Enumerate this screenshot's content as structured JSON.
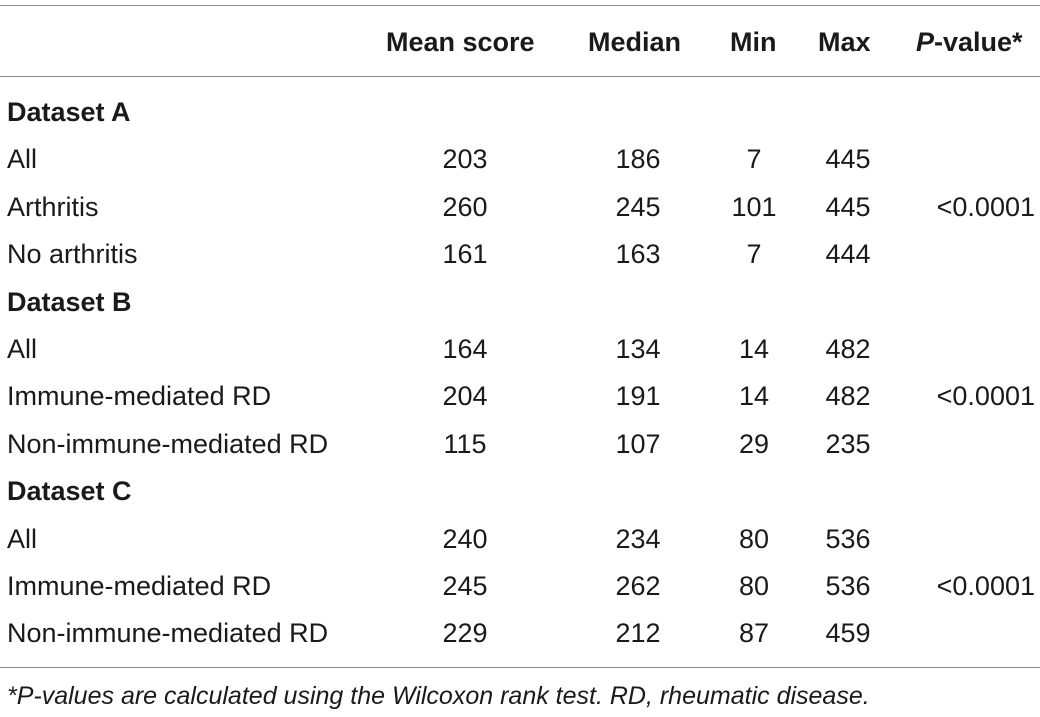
{
  "table": {
    "headers": {
      "mean": "Mean score",
      "median": "Median",
      "min": "Min",
      "max": "Max",
      "p_italic": "P",
      "p_rest": "-value*"
    },
    "rows": [
      {
        "label": "Dataset A",
        "section": true
      },
      {
        "label": "All",
        "mean": "203",
        "median": "186",
        "min": "7",
        "max": "445",
        "p": ""
      },
      {
        "label": "Arthritis",
        "mean": "260",
        "median": "245",
        "min": "101",
        "max": "445",
        "p": "<0.0001"
      },
      {
        "label": "No arthritis",
        "mean": "161",
        "median": "163",
        "min": "7",
        "max": "444",
        "p": ""
      },
      {
        "label": "Dataset B",
        "section": true
      },
      {
        "label": "All",
        "mean": "164",
        "median": "134",
        "min": "14",
        "max": "482",
        "p": ""
      },
      {
        "label": "Immune-mediated RD",
        "mean": "204",
        "median": "191",
        "min": "14",
        "max": "482",
        "p": "<0.0001"
      },
      {
        "label": "Non-immune-mediated RD",
        "mean": "115",
        "median": "107",
        "min": "29",
        "max": "235",
        "p": ""
      },
      {
        "label": "Dataset C",
        "section": true
      },
      {
        "label": "All",
        "mean": "240",
        "median": "234",
        "min": "80",
        "max": "536",
        "p": ""
      },
      {
        "label": "Immune-mediated RD",
        "mean": "245",
        "median": "262",
        "min": "80",
        "max": "536",
        "p": "<0.0001"
      },
      {
        "label": "Non-immune-mediated RD",
        "mean": "229",
        "median": "212",
        "min": "87",
        "max": "459",
        "p": ""
      }
    ],
    "footnote": "*P-values are calculated using the Wilcoxon rank test. RD, rheumatic disease."
  }
}
